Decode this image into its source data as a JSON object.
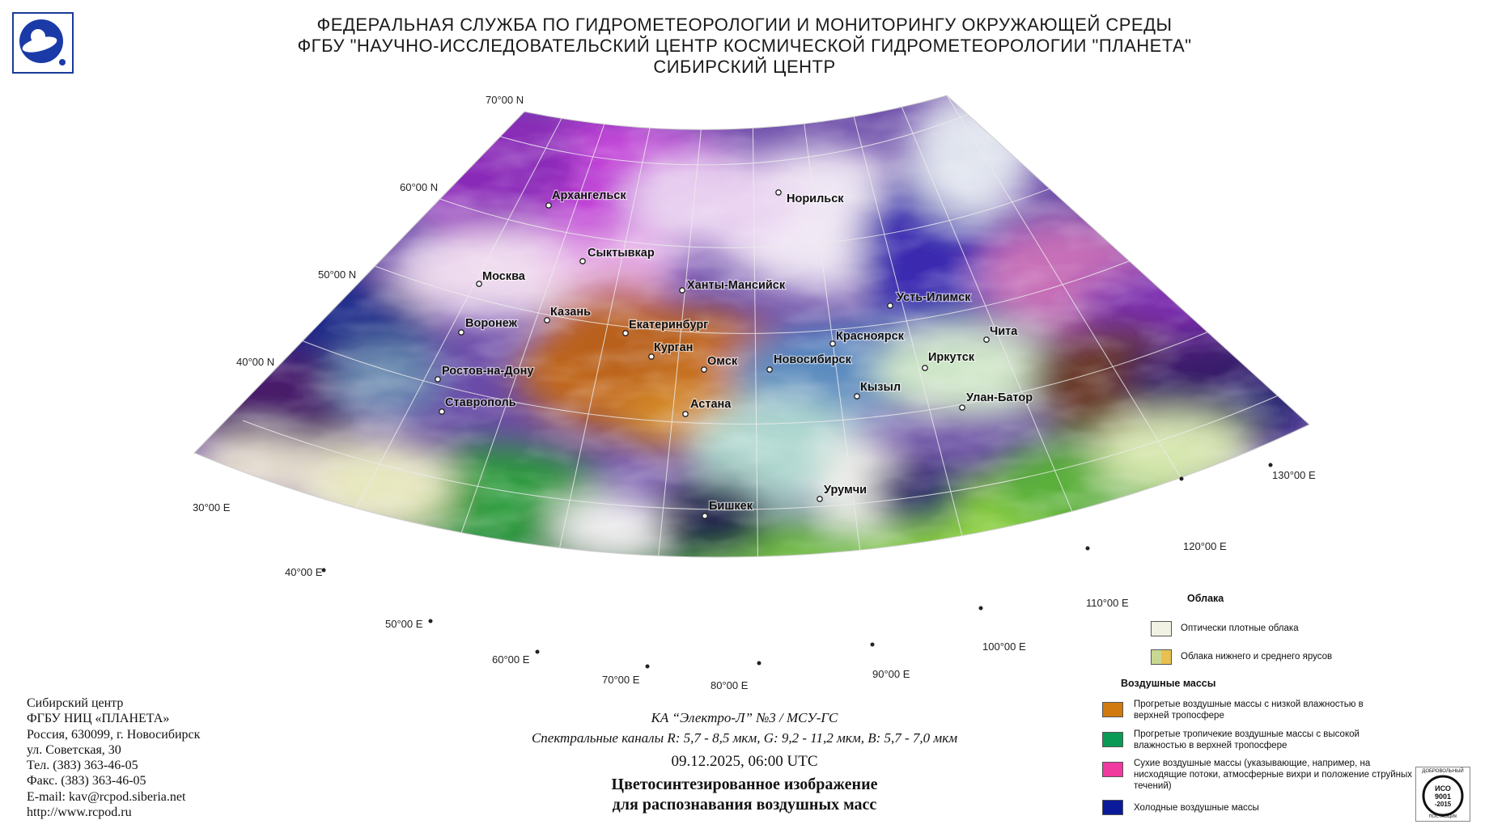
{
  "header": {
    "line1": "ФЕДЕРАЛЬНАЯ СЛУЖБА ПО ГИДРОМЕТЕОРОЛОГИИ И МОНИТОРИНГУ ОКРУЖАЮЩЕЙ СРЕДЫ",
    "line2": "ФГБУ \"НАУЧНО-ИССЛЕДОВАТЕЛЬСКИЙ ЦЕНТР КОСМИЧЕСКОЙ ГИДРОМЕТЕОРОЛОГИИ \"ПЛАНЕТА\"",
    "line3": "СИБИРСКИЙ ЦЕНТР"
  },
  "map": {
    "lat_labels": [
      "70°00 N",
      "60°00 N",
      "50°00 N",
      "40°00 N"
    ],
    "lon_labels": [
      "30°00 E",
      "40°00 E",
      "50°00 E",
      "60°00 E",
      "70°00 E",
      "80°00 E",
      "90°00 E",
      "100°00 E",
      "110°00 E",
      "120°00 E",
      "130°00 E"
    ],
    "cities": [
      "Архангельск",
      "Норильск",
      "Сыктывкар",
      "Москва",
      "Ханты-Мансийск",
      "Казань",
      "Усть-Илимск",
      "Воронеж",
      "Екатеринбург",
      "Красноярск",
      "Чита",
      "Курган",
      "Омск",
      "Новосибирск",
      "Иркутск",
      "Ростов-на-Дону",
      "Кызыл",
      "Улан-Батор",
      "Ставрополь",
      "Астана",
      "Урумчи",
      "Бишкек"
    ]
  },
  "contact": {
    "org": "Сибирский центр",
    "org2": "ФГБУ НИЦ «ПЛАНЕТА»",
    "address1": "Россия, 630099, г. Новосибирск",
    "address2": "ул. Советская, 30",
    "phone": "Тел. (383) 363-46-05",
    "fax": "Факс. (383) 363-46-05",
    "email": "E-mail: kav@rcpod.siberia.net",
    "url": "http://www.rcpod.ru"
  },
  "satellite": {
    "name": "КА “Электро-Л” №3 / МСУ-ГС",
    "channels": "Спектральные каналы R: 5,7 - 8,5 мкм, G: 9,2 - 11,2 мкм, B: 5,7 - 7,0 мкм",
    "datetime": "09.12.2025, 06:00 UTC",
    "title1": "Цветосинтезированное изображение",
    "title2": "для распознавания воздушных масс"
  },
  "legend": {
    "clouds_title": "Облака",
    "clouds": [
      {
        "label": "Оптически плотные облака",
        "color": "#f2f2e4"
      },
      {
        "label": "Облака нижнего и среднего ярусов",
        "colors": [
          "#c8d890",
          "#e8c050"
        ]
      }
    ],
    "airmass_title": "Воздушные массы",
    "airmasses": [
      {
        "label": "Прогретые воздушные массы с низкой влажностью в верхней тропосфере",
        "color": "#d07a10"
      },
      {
        "label": "Прогретые тропичекие воздушные массы с высокой влажностью в верхней тропосфере",
        "color": "#0a9a55"
      },
      {
        "label": "Сухие воздушные массы (указывающие, например, на нисходящие потоки, атмосферные вихри и положение струйных течений)",
        "color": "#f03aa0"
      },
      {
        "label": "Холодные воздушные массы",
        "color": "#0a1a9a"
      }
    ]
  },
  "certificate": {
    "line1": "ДОБРОВОЛЬНЫЙ",
    "line2": "ИСО",
    "line3": "9001",
    "line4": "-2015",
    "line5": "ПОСТАВЩИК"
  },
  "colors": {
    "cloud_white": "#f2eef6",
    "magenta_dry": "#c23ad8",
    "cold_blue": "#1a2a8a",
    "warm_orange": "#c56a1a",
    "tropical_green": "#2a9a3a",
    "grid": "#e8e8e8"
  }
}
